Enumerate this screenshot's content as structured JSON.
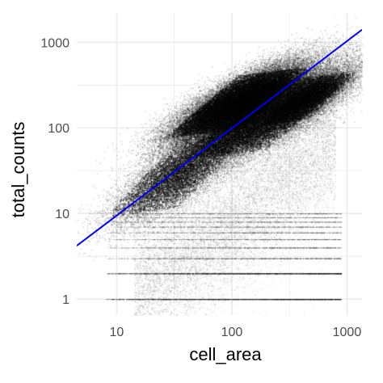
{
  "chart_data": {
    "type": "scatter",
    "title": "",
    "xlabel": "cell_area",
    "ylabel": "total_counts",
    "x_scale": "log10",
    "y_scale": "log10",
    "xlim": [
      4.5,
      1350
    ],
    "ylim": [
      0.65,
      2200
    ],
    "x_ticks": [
      {
        "value": 10,
        "label": "10"
      },
      {
        "value": 100,
        "label": "100"
      },
      {
        "value": 1000,
        "label": "1000"
      }
    ],
    "y_ticks": [
      {
        "value": 1,
        "label": "1"
      },
      {
        "value": 10,
        "label": "10"
      },
      {
        "value": 100,
        "label": "100"
      },
      {
        "value": 1000,
        "label": "1000"
      }
    ],
    "grid": true,
    "point_color": "#000000",
    "background": "#ffffff",
    "grid_color": "#ebebeb",
    "density_clusters": [
      {
        "center": [
          115,
          200
        ],
        "spread_log": [
          0.3,
          0.24
        ],
        "weight": 0.42
      },
      {
        "center": [
          200,
          140
        ],
        "spread_log": [
          0.36,
          0.3
        ],
        "weight": 0.3
      },
      {
        "center": [
          450,
          220
        ],
        "spread_log": [
          0.2,
          0.18
        ],
        "weight": 0.1
      },
      {
        "center": [
          35,
          30
        ],
        "spread_log": [
          0.3,
          0.3
        ],
        "weight": 0.12
      }
    ],
    "discrete_count_rows": [
      1,
      2,
      3,
      4,
      5,
      6,
      7,
      8,
      9,
      10
    ],
    "reference_line": {
      "color": "#0000ee",
      "points": [
        [
          4.5,
          4.2
        ],
        [
          1350,
          1400
        ]
      ]
    }
  }
}
